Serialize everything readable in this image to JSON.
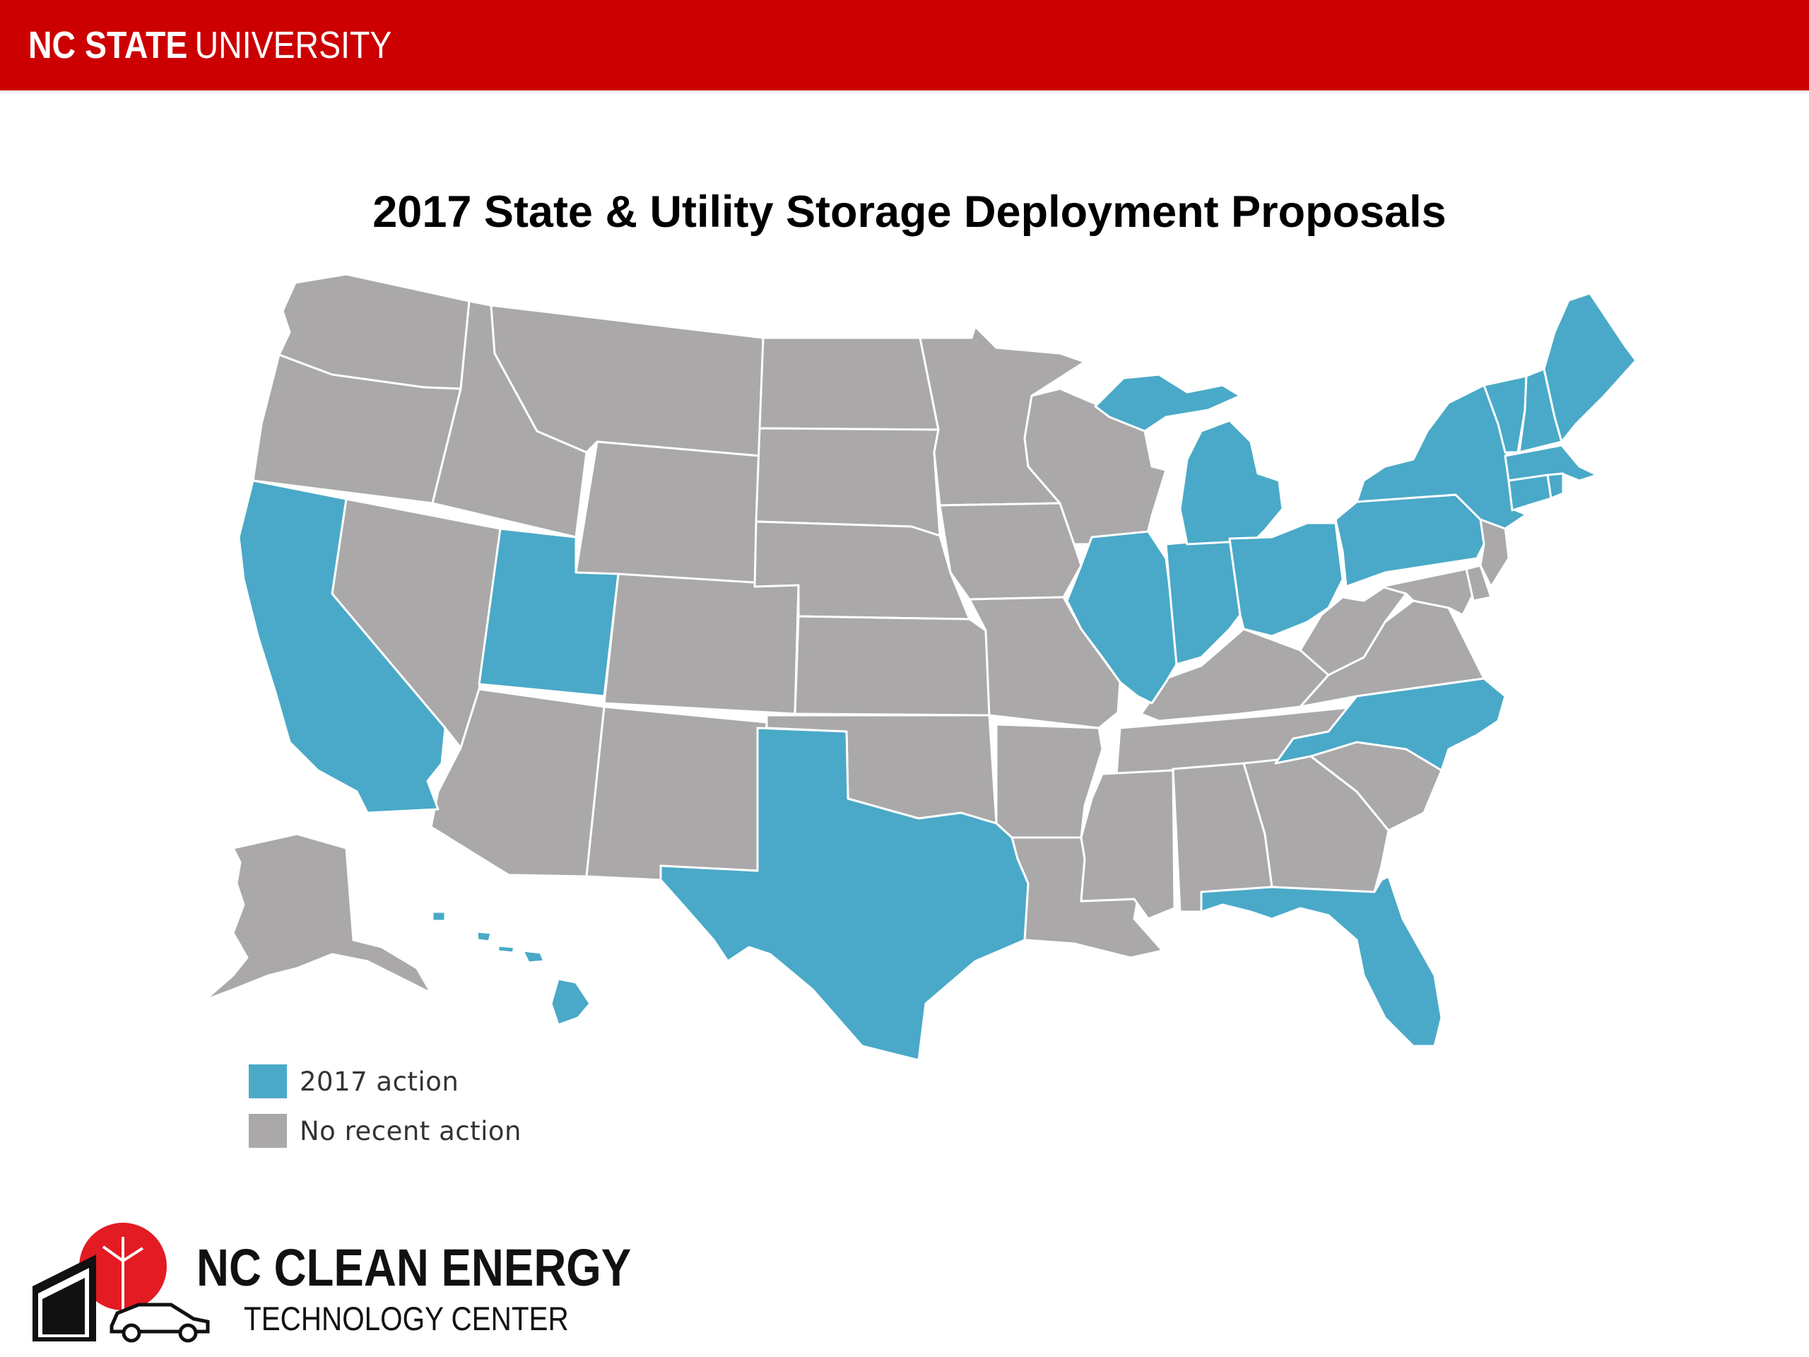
{
  "header": {
    "brand_bold": "NC STATE",
    "brand_light": "UNIVERSITY",
    "bar_color": "#cc0000"
  },
  "map": {
    "title": "2017 State & Utility Storage Deployment Proposals",
    "legend": [
      {
        "label": "2017 action",
        "color": "#4aa9c8"
      },
      {
        "label": "No recent action",
        "color": "#aaa8a9"
      }
    ],
    "states_2017_action": [
      "California",
      "Utah",
      "Texas",
      "Illinois",
      "Indiana",
      "Michigan",
      "Ohio",
      "Pennsylvania",
      "New York",
      "Vermont",
      "New Hampshire",
      "Maine",
      "Massachusetts",
      "Connecticut",
      "Rhode Island",
      "North Carolina",
      "Florida",
      "Hawaii"
    ],
    "states_no_recent_action": [
      "Washington",
      "Oregon",
      "Idaho",
      "Montana",
      "Wyoming",
      "Nevada",
      "Arizona",
      "New Mexico",
      "Colorado",
      "North Dakota",
      "South Dakota",
      "Nebraska",
      "Kansas",
      "Oklahoma",
      "Minnesota",
      "Iowa",
      "Missouri",
      "Arkansas",
      "Louisiana",
      "Wisconsin",
      "Kentucky",
      "Tennessee",
      "Mississippi",
      "Alabama",
      "Georgia",
      "South Carolina",
      "Virginia",
      "West Virginia",
      "Maryland",
      "Delaware",
      "New Jersey",
      "Alaska"
    ]
  },
  "logo": {
    "line1": "NC CLEAN ENERGY",
    "line2": "TECHNOLOGY CENTER",
    "accent_color": "#e31b23",
    "icons": [
      "wind-turbine-icon",
      "building-icon",
      "car-icon"
    ]
  }
}
